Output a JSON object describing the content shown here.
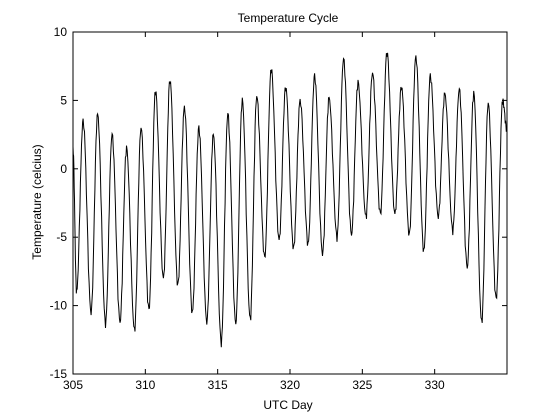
{
  "chart_data": {
    "type": "line",
    "title": "Temperature Cycle",
    "xlabel": "UTC Day",
    "ylabel": "Temperature (celcius)",
    "xlim": [
      305,
      335
    ],
    "ylim": [
      -15,
      10
    ],
    "x_ticks": [
      305,
      310,
      315,
      320,
      325,
      330
    ],
    "y_ticks": [
      -15,
      -10,
      -5,
      0,
      5,
      10
    ],
    "grid": false,
    "legend": "none",
    "line_color": "#000000",
    "daily_extremes": [
      {
        "day": 305,
        "min": -9.0,
        "max": 3.5
      },
      {
        "day": 306,
        "min": -10.5,
        "max": 4.0
      },
      {
        "day": 307,
        "min": -11.3,
        "max": 2.5
      },
      {
        "day": 308,
        "min": -11.2,
        "max": 1.5
      },
      {
        "day": 309,
        "min": -11.8,
        "max": 3.0
      },
      {
        "day": 310,
        "min": -10.3,
        "max": 5.7
      },
      {
        "day": 311,
        "min": -8.0,
        "max": 6.5
      },
      {
        "day": 312,
        "min": -8.5,
        "max": 4.5
      },
      {
        "day": 313,
        "min": -10.5,
        "max": 3.0
      },
      {
        "day": 314,
        "min": -11.2,
        "max": 2.5
      },
      {
        "day": 315,
        "min": -12.7,
        "max": 4.0
      },
      {
        "day": 316,
        "min": -11.3,
        "max": 5.0
      },
      {
        "day": 317,
        "min": -11.0,
        "max": 5.3
      },
      {
        "day": 318,
        "min": -6.5,
        "max": 7.3
      },
      {
        "day": 319,
        "min": -5.2,
        "max": 6.0
      },
      {
        "day": 320,
        "min": -5.8,
        "max": 5.0
      },
      {
        "day": 321,
        "min": -5.5,
        "max": 6.8
      },
      {
        "day": 322,
        "min": -6.2,
        "max": 5.2
      },
      {
        "day": 323,
        "min": -5.0,
        "max": 8.0
      },
      {
        "day": 324,
        "min": -4.8,
        "max": 6.3
      },
      {
        "day": 325,
        "min": -3.5,
        "max": 7.0
      },
      {
        "day": 326,
        "min": -3.3,
        "max": 8.5
      },
      {
        "day": 327,
        "min": -3.3,
        "max": 6.0
      },
      {
        "day": 328,
        "min": -4.8,
        "max": 8.2
      },
      {
        "day": 329,
        "min": -6.0,
        "max": 6.8
      },
      {
        "day": 330,
        "min": -3.5,
        "max": 5.5
      },
      {
        "day": 331,
        "min": -4.5,
        "max": 5.8
      },
      {
        "day": 332,
        "min": -7.2,
        "max": 5.5
      },
      {
        "day": 333,
        "min": -11.2,
        "max": 4.8
      },
      {
        "day": 334,
        "min": -9.5,
        "max": 5.0
      }
    ]
  }
}
